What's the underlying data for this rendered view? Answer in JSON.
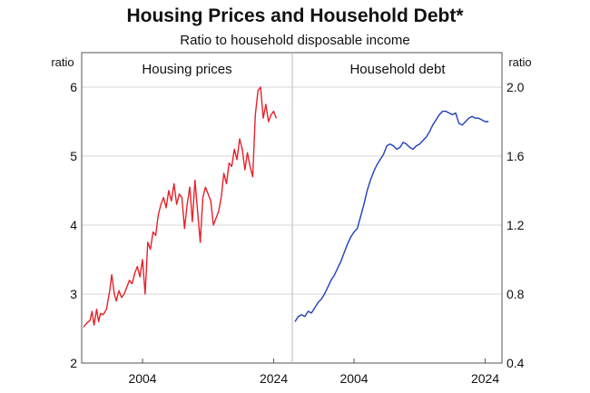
{
  "chart_data": {
    "type": "line",
    "title": "Housing Prices and Household Debt*",
    "subtitle": "Ratio to household disposable income",
    "grid": true,
    "panels": [
      {
        "title": "Housing prices",
        "axis_label": "ratio",
        "axis_side": "left",
        "ylim": [
          2,
          6.5
        ],
        "yticks": [
          "2",
          "3",
          "4",
          "5",
          "6"
        ],
        "xlim": [
          1995,
          2026
        ],
        "xticks": [
          "2004",
          "2024"
        ],
        "series": [
          {
            "color": "#e8212a",
            "x": [
              1995.0,
              1995.5,
              1996.0,
              1996.3,
              1996.6,
              1997.0,
              1997.3,
              1997.6,
              1998.0,
              1998.5,
              1999.0,
              1999.3,
              1999.7,
              2000.0,
              2000.4,
              2000.8,
              2001.2,
              2001.6,
              2002.0,
              2002.4,
              2002.8,
              2003.2,
              2003.6,
              2004.0,
              2004.4,
              2004.8,
              2005.2,
              2005.6,
              2006.0,
              2006.4,
              2006.8,
              2007.2,
              2007.6,
              2008.0,
              2008.4,
              2008.8,
              2009.2,
              2009.6,
              2010.0,
              2010.4,
              2010.8,
              2011.2,
              2011.6,
              2012.0,
              2012.4,
              2012.8,
              2013.2,
              2013.6,
              2014.0,
              2014.4,
              2014.8,
              2015.2,
              2015.6,
              2016.0,
              2016.4,
              2016.8,
              2017.2,
              2017.6,
              2018.0,
              2018.4,
              2018.8,
              2019.2,
              2019.6,
              2020.0,
              2020.4,
              2020.8,
              2021.2,
              2021.6,
              2022.0,
              2022.4,
              2022.8,
              2023.2,
              2023.6,
              2024.0,
              2024.4
            ],
            "values": [
              2.52,
              2.58,
              2.62,
              2.75,
              2.55,
              2.78,
              2.6,
              2.72,
              2.7,
              2.78,
              3.05,
              3.28,
              3.0,
              2.9,
              3.05,
              2.95,
              3.0,
              3.1,
              3.2,
              3.15,
              3.3,
              3.4,
              3.25,
              3.5,
              3.0,
              3.75,
              3.65,
              3.9,
              3.85,
              4.15,
              4.3,
              4.4,
              4.25,
              4.5,
              4.35,
              4.6,
              4.3,
              4.45,
              4.4,
              3.95,
              4.3,
              4.55,
              4.05,
              4.65,
              4.2,
              3.75,
              4.4,
              4.55,
              4.45,
              4.35,
              4.0,
              4.1,
              4.2,
              4.4,
              4.75,
              4.6,
              4.9,
              4.85,
              5.1,
              4.95,
              5.25,
              5.1,
              4.8,
              5.05,
              4.85,
              4.7,
              5.6,
              5.95,
              6.0,
              5.55,
              5.75,
              5.5,
              5.6,
              5.65,
              5.55
            ]
          }
        ]
      },
      {
        "title": "Household debt",
        "axis_label": "ratio",
        "axis_side": "right",
        "ylim": [
          0.4,
          2.2
        ],
        "yticks": [
          "0.4",
          "0.8",
          "1.2",
          "1.6",
          "2.0"
        ],
        "xlim": [
          1995,
          2026
        ],
        "xticks": [
          "2004",
          "2024"
        ],
        "series": [
          {
            "color": "#1f3fbf",
            "x": [
              1995.0,
              1995.5,
              1996.0,
              1996.5,
              1997.0,
              1997.5,
              1998.0,
              1998.5,
              1999.0,
              1999.5,
              2000.0,
              2000.5,
              2001.0,
              2001.5,
              2002.0,
              2002.5,
              2003.0,
              2003.5,
              2004.0,
              2004.5,
              2005.0,
              2005.5,
              2006.0,
              2006.5,
              2007.0,
              2007.5,
              2008.0,
              2008.5,
              2009.0,
              2009.5,
              2010.0,
              2010.5,
              2011.0,
              2011.5,
              2012.0,
              2012.5,
              2013.0,
              2013.5,
              2014.0,
              2014.5,
              2015.0,
              2015.5,
              2016.0,
              2016.5,
              2017.0,
              2017.5,
              2018.0,
              2018.5,
              2019.0,
              2019.5,
              2020.0,
              2020.5,
              2021.0,
              2021.5,
              2022.0,
              2022.5,
              2023.0,
              2023.5,
              2024.0,
              2024.5
            ],
            "values": [
              0.64,
              0.67,
              0.68,
              0.67,
              0.7,
              0.69,
              0.72,
              0.75,
              0.77,
              0.8,
              0.84,
              0.88,
              0.91,
              0.95,
              0.99,
              1.04,
              1.09,
              1.13,
              1.16,
              1.18,
              1.25,
              1.32,
              1.4,
              1.46,
              1.51,
              1.55,
              1.58,
              1.61,
              1.66,
              1.67,
              1.66,
              1.64,
              1.65,
              1.68,
              1.67,
              1.65,
              1.64,
              1.66,
              1.67,
              1.69,
              1.71,
              1.74,
              1.78,
              1.81,
              1.84,
              1.86,
              1.86,
              1.85,
              1.84,
              1.85,
              1.79,
              1.78,
              1.8,
              1.82,
              1.83,
              1.82,
              1.82,
              1.81,
              1.8,
              1.8
            ]
          }
        ]
      }
    ]
  }
}
